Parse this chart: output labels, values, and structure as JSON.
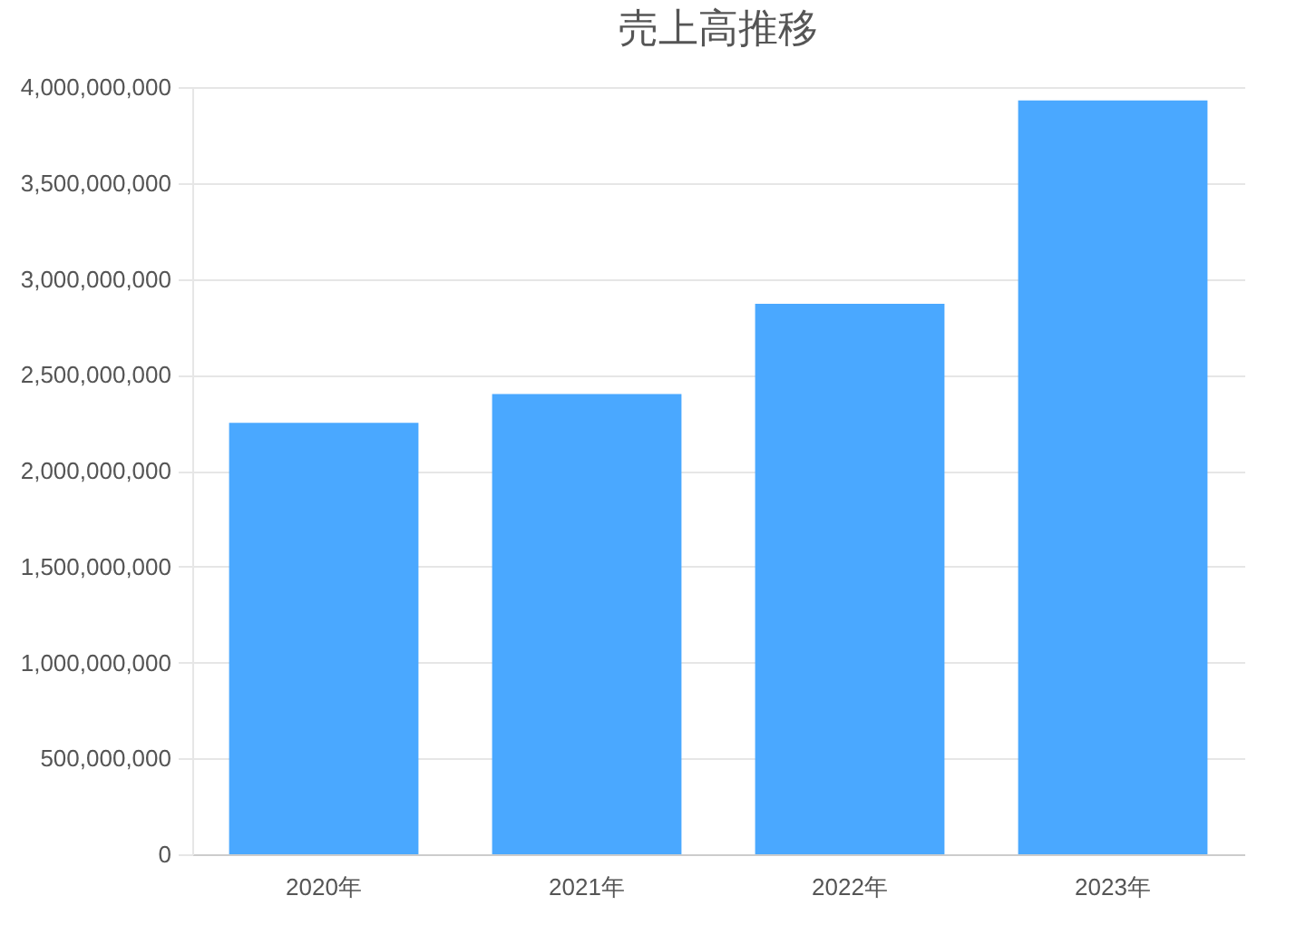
{
  "chart_data": {
    "type": "bar",
    "title": "売上高推移",
    "categories": [
      "2020年",
      "2021年",
      "2022年",
      "2023年"
    ],
    "values": [
      2250000000,
      2400000000,
      2870000000,
      3930000000
    ],
    "color": "#4aa8ff",
    "ylim": [
      0,
      4000000000
    ],
    "yticks": [
      0,
      {
        "value": 500000000,
        "label": "500,000,000"
      },
      {
        "value": 1000000000,
        "label": "1,000,000,000"
      },
      {
        "value": 1500000000,
        "label": "1,500,000,000"
      },
      {
        "value": 2000000000,
        "label": "2,000,000,000"
      },
      {
        "value": 2500000000,
        "label": "2,500,000,000"
      },
      {
        "value": 3000000000,
        "label": "3,000,000,000"
      },
      {
        "value": 3500000000,
        "label": "3,500,000,000"
      },
      {
        "value": 4000000000,
        "label": "4,000,000,000"
      }
    ],
    "grid": "y"
  }
}
